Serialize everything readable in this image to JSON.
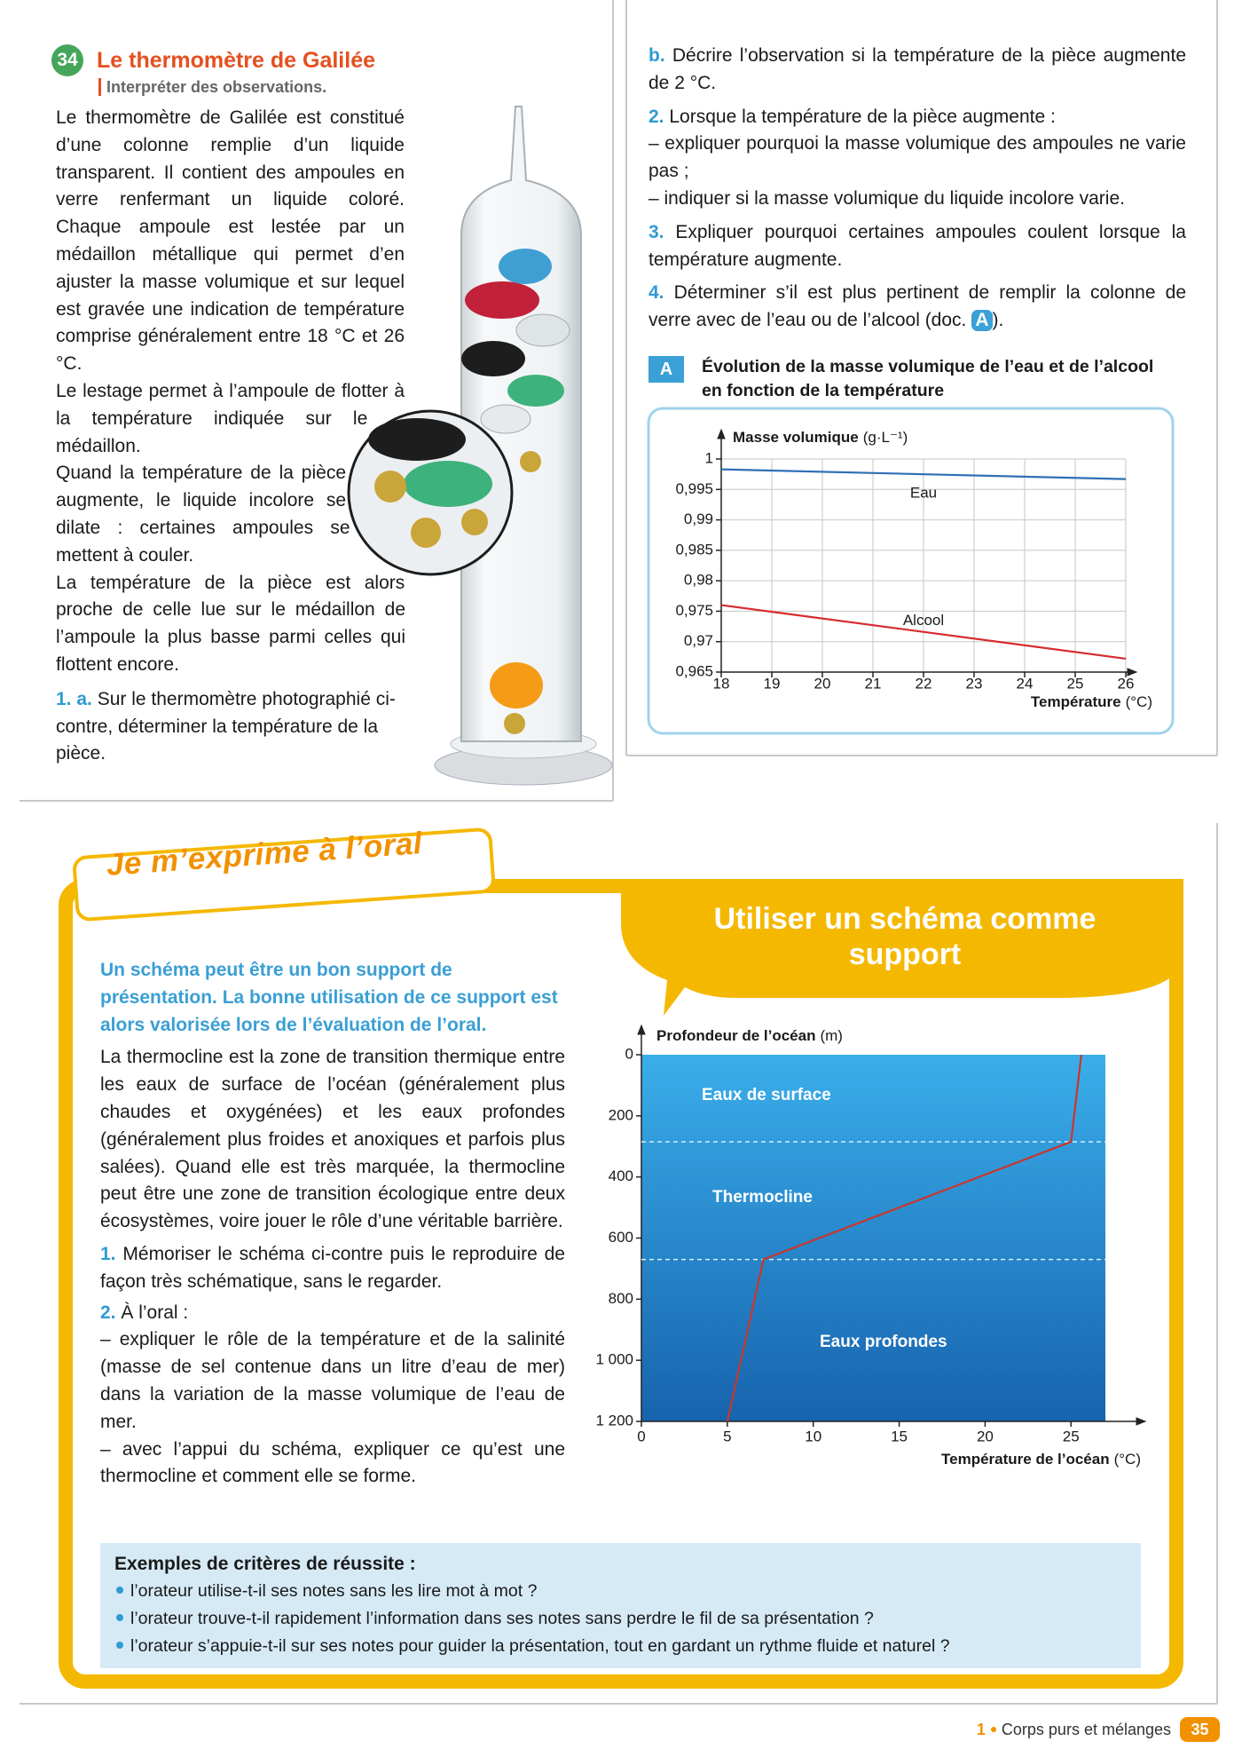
{
  "exercise": {
    "number": "34",
    "title": "Le thermomètre de Galilée",
    "skill": "Interpréter des observations.",
    "paragraphs": [
      "Le thermomètre de Galilée est constitué d’une colonne remplie d’un liquide transparent. Il contient des ampoules en verre renfermant un liquide coloré. Chaque ampoule est lestée par un médaillon métallique qui permet d’en ajuster la masse volumique et sur lequel est gravée une indication de température comprise généralement entre 18 °C et 26 °C.",
      "Le lestage permet à l’ampoule de flotter à la température indiquée sur le médaillon.",
      "Quand la température de la pièce augmente, le liquide incolore se dilate : certaines ampoules se mettent à couler.",
      "La température de la pièce est alors proche de celle lue sur le médaillon de l’ampoule la plus basse parmi celles qui flottent encore."
    ],
    "questions": [
      {
        "label": "1. a.",
        "text": "Sur le thermomètre photographié ci-contre, déterminer la température de la pièce."
      },
      {
        "label": "b.",
        "text": "Décrire l’observation si la température de la pièce augmente de 2 °C."
      },
      {
        "label": "2.",
        "text": "Lorsque la température de la pièce augmente :",
        "items": [
          "– expliquer pourquoi la masse volumique des ampoules ne varie pas ;",
          "– indiquer si la masse volumique du liquide incolore varie."
        ]
      },
      {
        "label": "3.",
        "text": "Expliquer pourquoi certaines ampoules coulent lorsque la température augmente."
      },
      {
        "label": "4.",
        "text": "Déterminer s’il est plus pertinent de remplir la colonne de verre avec de l’eau ou de l’alcool (doc.",
        "ref": "A",
        "end": ")."
      }
    ]
  },
  "chart_data": [
    {
      "type": "line",
      "label": "A",
      "title": "Évolution de la masse volumique de l’eau et de l’alcool en fonction de la température",
      "xlabel": "Température",
      "xunit": "(°C)",
      "ylabel": "Masse volumique",
      "yunit": "(g·L⁻¹)",
      "x": [
        18,
        26
      ],
      "series": [
        {
          "name": "Eau",
          "color": "#2f6fb5",
          "values": [
            0.9983,
            0.9967
          ]
        },
        {
          "name": "Alcool",
          "color": "#d72a2e",
          "values": [
            0.976,
            0.9672
          ]
        }
      ],
      "xlim": [
        18,
        26
      ],
      "xticks": [
        18,
        19,
        20,
        21,
        22,
        23,
        24,
        25,
        26
      ],
      "ylim": [
        0.965,
        1
      ],
      "yticks": [
        {
          "value": 0.965,
          "label": "0,965"
        },
        {
          "value": 0.97,
          "label": "0,97"
        },
        {
          "value": 0.975,
          "label": "0,975"
        },
        {
          "value": 0.98,
          "label": "0,98"
        },
        {
          "value": 0.985,
          "label": "0,985"
        },
        {
          "value": 0.99,
          "label": "0,99"
        },
        {
          "value": 0.995,
          "label": "0,995"
        },
        1
      ],
      "grid": true
    },
    {
      "type": "line",
      "title": "Utiliser un schéma comme support",
      "xlabel": "Température de l’océan",
      "xunit": "(°C)",
      "ylabel": "Profondeur de l’océan",
      "yunit": "(m)",
      "x": [
        25.6,
        25,
        7.1,
        5
      ],
      "values": [
        0,
        285,
        670,
        1200
      ],
      "color": "#c8372d",
      "zones": [
        "Eaux de surface",
        "Thermocline",
        "Eaux profondes"
      ],
      "xlim": [
        0,
        27
      ],
      "xticks": [
        0,
        5,
        10,
        15,
        20,
        25
      ],
      "ylim": [
        0,
        1200
      ],
      "y_reversed": true,
      "yticks": [
        0,
        200,
        400,
        600,
        800,
        {
          "value": 1000,
          "label": "1 000"
        },
        {
          "value": 1200,
          "label": "1 200"
        }
      ],
      "grid": false
    }
  ],
  "oral": {
    "banner": "Je m’exprime à l’oral",
    "intro": "Un schéma peut être un bon support de présentation. La bonne utilisation de ce support est alors valorisée lors de l’évaluation de l’oral.",
    "text": "La thermocline est la zone de transition thermique entre les eaux de surface de l’océan (généralement plus chaudes et oxygénées) et les eaux profondes (généralement plus froides et anoxiques et parfois plus salées). Quand elle est très marquée, la thermocline peut être une zone de transition écologique entre deux écosystèmes, voire jouer le rôle d’une véritable barrière.",
    "questions": [
      {
        "label": "1.",
        "text": "Mémoriser le schéma ci-contre puis le reproduire de façon très schématique, sans le regarder."
      },
      {
        "label": "2.",
        "text": "À l’oral :",
        "items": [
          "– expliquer le rôle de la température et de la salinité (masse de sel contenue dans un litre d’eau de mer) dans la variation de la masse volumique de l’eau de mer.",
          "– avec l’appui du schéma, expliquer ce qu’est une thermocline et comment elle se forme."
        ]
      }
    ],
    "criteria": {
      "title": "Exemples de critères de réussite :",
      "items": [
        "l’orateur utilise-t-il ses notes sans les lire mot à mot ?",
        "l’orateur trouve-t-il rapidement l’information dans ses notes sans perdre le fil de sa présentation ?",
        "l’orateur s’appuie-t-il sur ses notes pour guider la présentation, tout en gardant un rythme fluide et naturel ?"
      ]
    }
  },
  "footer": {
    "chapter": "1",
    "title": "Corps purs et mélanges",
    "page": "35"
  }
}
